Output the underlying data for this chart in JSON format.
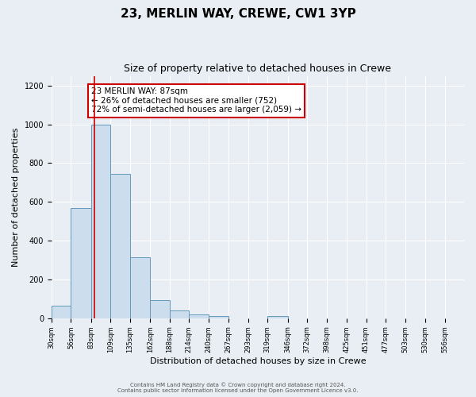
{
  "title": "23, MERLIN WAY, CREWE, CW1 3YP",
  "subtitle": "Size of property relative to detached houses in Crewe",
  "xlabel": "Distribution of detached houses by size in Crewe",
  "ylabel": "Number of detached properties",
  "bar_values": [
    65,
    570,
    1000,
    745,
    315,
    95,
    40,
    20,
    10,
    0,
    0,
    10,
    0,
    0,
    0,
    0,
    0,
    0,
    0,
    0,
    0
  ],
  "bin_edges": [
    30,
    56,
    83,
    109,
    135,
    162,
    188,
    214,
    240,
    267,
    293,
    319,
    346,
    372,
    398,
    425,
    451,
    477,
    503,
    530,
    556,
    582
  ],
  "tick_labels": [
    "30sqm",
    "56sqm",
    "83sqm",
    "109sqm",
    "135sqm",
    "162sqm",
    "188sqm",
    "214sqm",
    "240sqm",
    "267sqm",
    "293sqm",
    "319sqm",
    "346sqm",
    "372sqm",
    "398sqm",
    "425sqm",
    "451sqm",
    "477sqm",
    "503sqm",
    "530sqm",
    "556sqm"
  ],
  "bar_color": "#ccdded",
  "bar_edge_color": "#6699bb",
  "red_line_x": 87,
  "ylim": [
    0,
    1250
  ],
  "yticks": [
    0,
    200,
    400,
    600,
    800,
    1000,
    1200
  ],
  "annotation_text": "23 MERLIN WAY: 87sqm\n← 26% of detached houses are smaller (752)\n72% of semi-detached houses are larger (2,059) →",
  "annotation_box_color": "#ffffff",
  "annotation_box_edge_color": "#cc0000",
  "footer_line1": "Contains HM Land Registry data © Crown copyright and database right 2024.",
  "footer_line2": "Contains public sector information licensed under the Open Government Licence v3.0.",
  "background_color": "#e8eef4",
  "plot_background_color": "#e8eef4",
  "grid_color": "#ffffff",
  "title_fontsize": 11,
  "subtitle_fontsize": 9,
  "xlabel_fontsize": 8,
  "ylabel_fontsize": 8,
  "xtick_fontsize": 6,
  "ytick_fontsize": 7,
  "footer_fontsize": 5,
  "annot_fontsize": 7.5
}
